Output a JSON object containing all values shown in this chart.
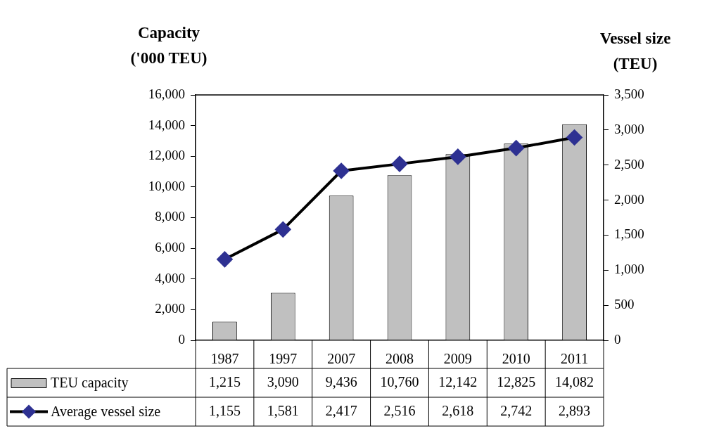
{
  "chart_data": {
    "type": "bar",
    "ylabel": "Capacity ('000 TEU)",
    "y2label": "Vessel size (TEU)",
    "categories": [
      "1987",
      "1997",
      "2007",
      "2008",
      "2009",
      "2010",
      "2011"
    ],
    "series": [
      {
        "name": "TEU capacity",
        "color": "#c0c0c0",
        "values": [
          1215,
          3090,
          9436,
          10760,
          12142,
          12825,
          14082
        ],
        "value_labels": [
          "1,215",
          "3,090",
          "9,436",
          "10,760",
          "12,142",
          "12,825",
          "14,082"
        ]
      },
      {
        "name": "Average vessel size",
        "type": "line",
        "axis": "y2",
        "color": "#2e3192",
        "marker": "diamond",
        "line_style": "solid",
        "values": [
          1155,
          1581,
          2417,
          2516,
          2618,
          2742,
          2893
        ],
        "value_labels": [
          "1,155",
          "1,581",
          "2,417",
          "2,516",
          "2,618",
          "2,742",
          "2,893"
        ]
      }
    ],
    "ylim": [
      0,
      16000
    ],
    "yticks": [
      0,
      {
        "value": 2000,
        "label": "2,000"
      },
      {
        "value": 4000,
        "label": "4,000"
      },
      {
        "value": 6000,
        "label": "6,000"
      },
      {
        "value": 8000,
        "label": "8,000"
      },
      {
        "value": 10000,
        "label": "10,000"
      },
      {
        "value": 12000,
        "label": "12,000"
      },
      {
        "value": 14000,
        "label": "14,000"
      },
      {
        "value": 16000,
        "label": "16,000"
      }
    ],
    "y2lim": [
      0,
      3500
    ],
    "y2ticks": [
      0,
      500,
      {
        "value": 1000,
        "label": "1,000"
      },
      {
        "value": 1500,
        "label": "1,500"
      },
      {
        "value": 2000,
        "label": "2,000"
      },
      {
        "value": 2500,
        "label": "2,500"
      },
      {
        "value": 3000,
        "label": "3,000"
      },
      {
        "value": 3500,
        "label": "3,500"
      }
    ],
    "grid": false,
    "legend": "bottom"
  }
}
